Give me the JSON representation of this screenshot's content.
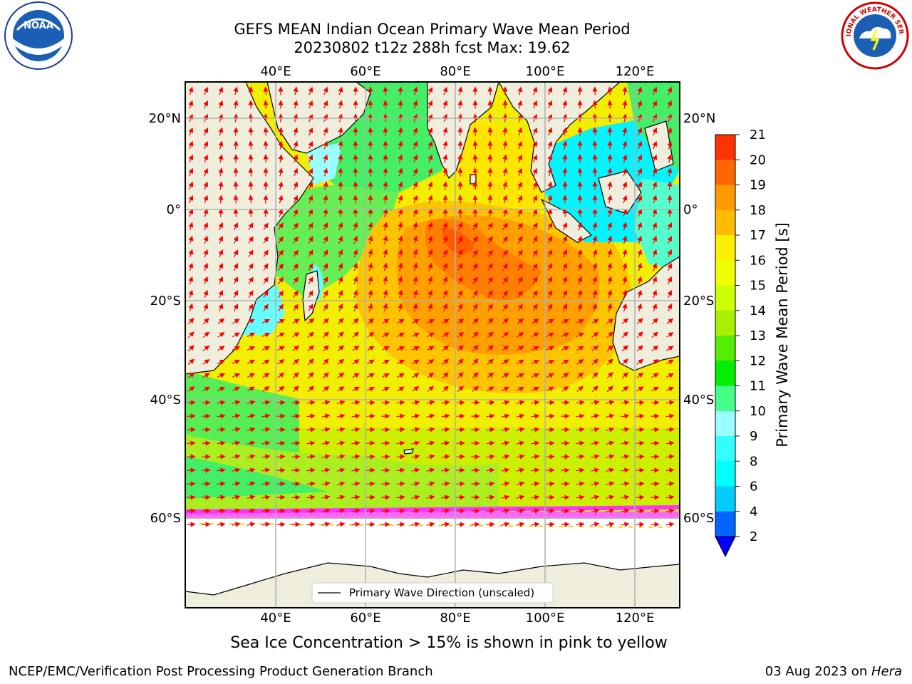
{
  "header": {
    "title_line1": "GEFS MEAN Indian Ocean Primary Wave Mean Period",
    "title_line2": "20230802 t12z 288h fcst   Max: 19.62"
  },
  "logos": {
    "left": "NOAA",
    "right": "NATIONAL WEATHER SERVICE"
  },
  "map": {
    "lon_ticks": [
      "40°E",
      "60°E",
      "80°E",
      "100°E",
      "120°E"
    ],
    "lat_ticks": [
      "20°N",
      "0°",
      "20°S",
      "40°S",
      "60°S"
    ],
    "legend_label": "Primary Wave Direction (unscaled)",
    "colors": {
      "land": "#efeedd",
      "ice_free": "#ffffff",
      "arrow": "#ff0000",
      "grid": "#b0b0b0"
    }
  },
  "colorbar": {
    "label": "Primary Wave Mean Period [s]",
    "ticks": [
      "2",
      "4",
      "6",
      "8",
      "9",
      "10",
      "11",
      "12",
      "13",
      "14",
      "15",
      "16",
      "17",
      "18",
      "19",
      "20",
      "21"
    ],
    "colors": [
      "#0066ff",
      "#00ccff",
      "#00ffff",
      "#33ffff",
      "#99ffff",
      "#44ff88",
      "#00ee00",
      "#55ee00",
      "#aaee00",
      "#ccff00",
      "#eeff00",
      "#ffee00",
      "#ffbb00",
      "#ff9900",
      "#ff6600",
      "#ff3300"
    ],
    "extend_color": "#0000ff"
  },
  "notes": {
    "sea_ice": "Sea Ice Concentration > 15% is shown in pink to yellow"
  },
  "footer": {
    "left": "NCEP/EMC/Verification Post Processing Product Generation Branch",
    "right_date": "03 Aug 2023 on ",
    "right_machine": "Hera"
  }
}
